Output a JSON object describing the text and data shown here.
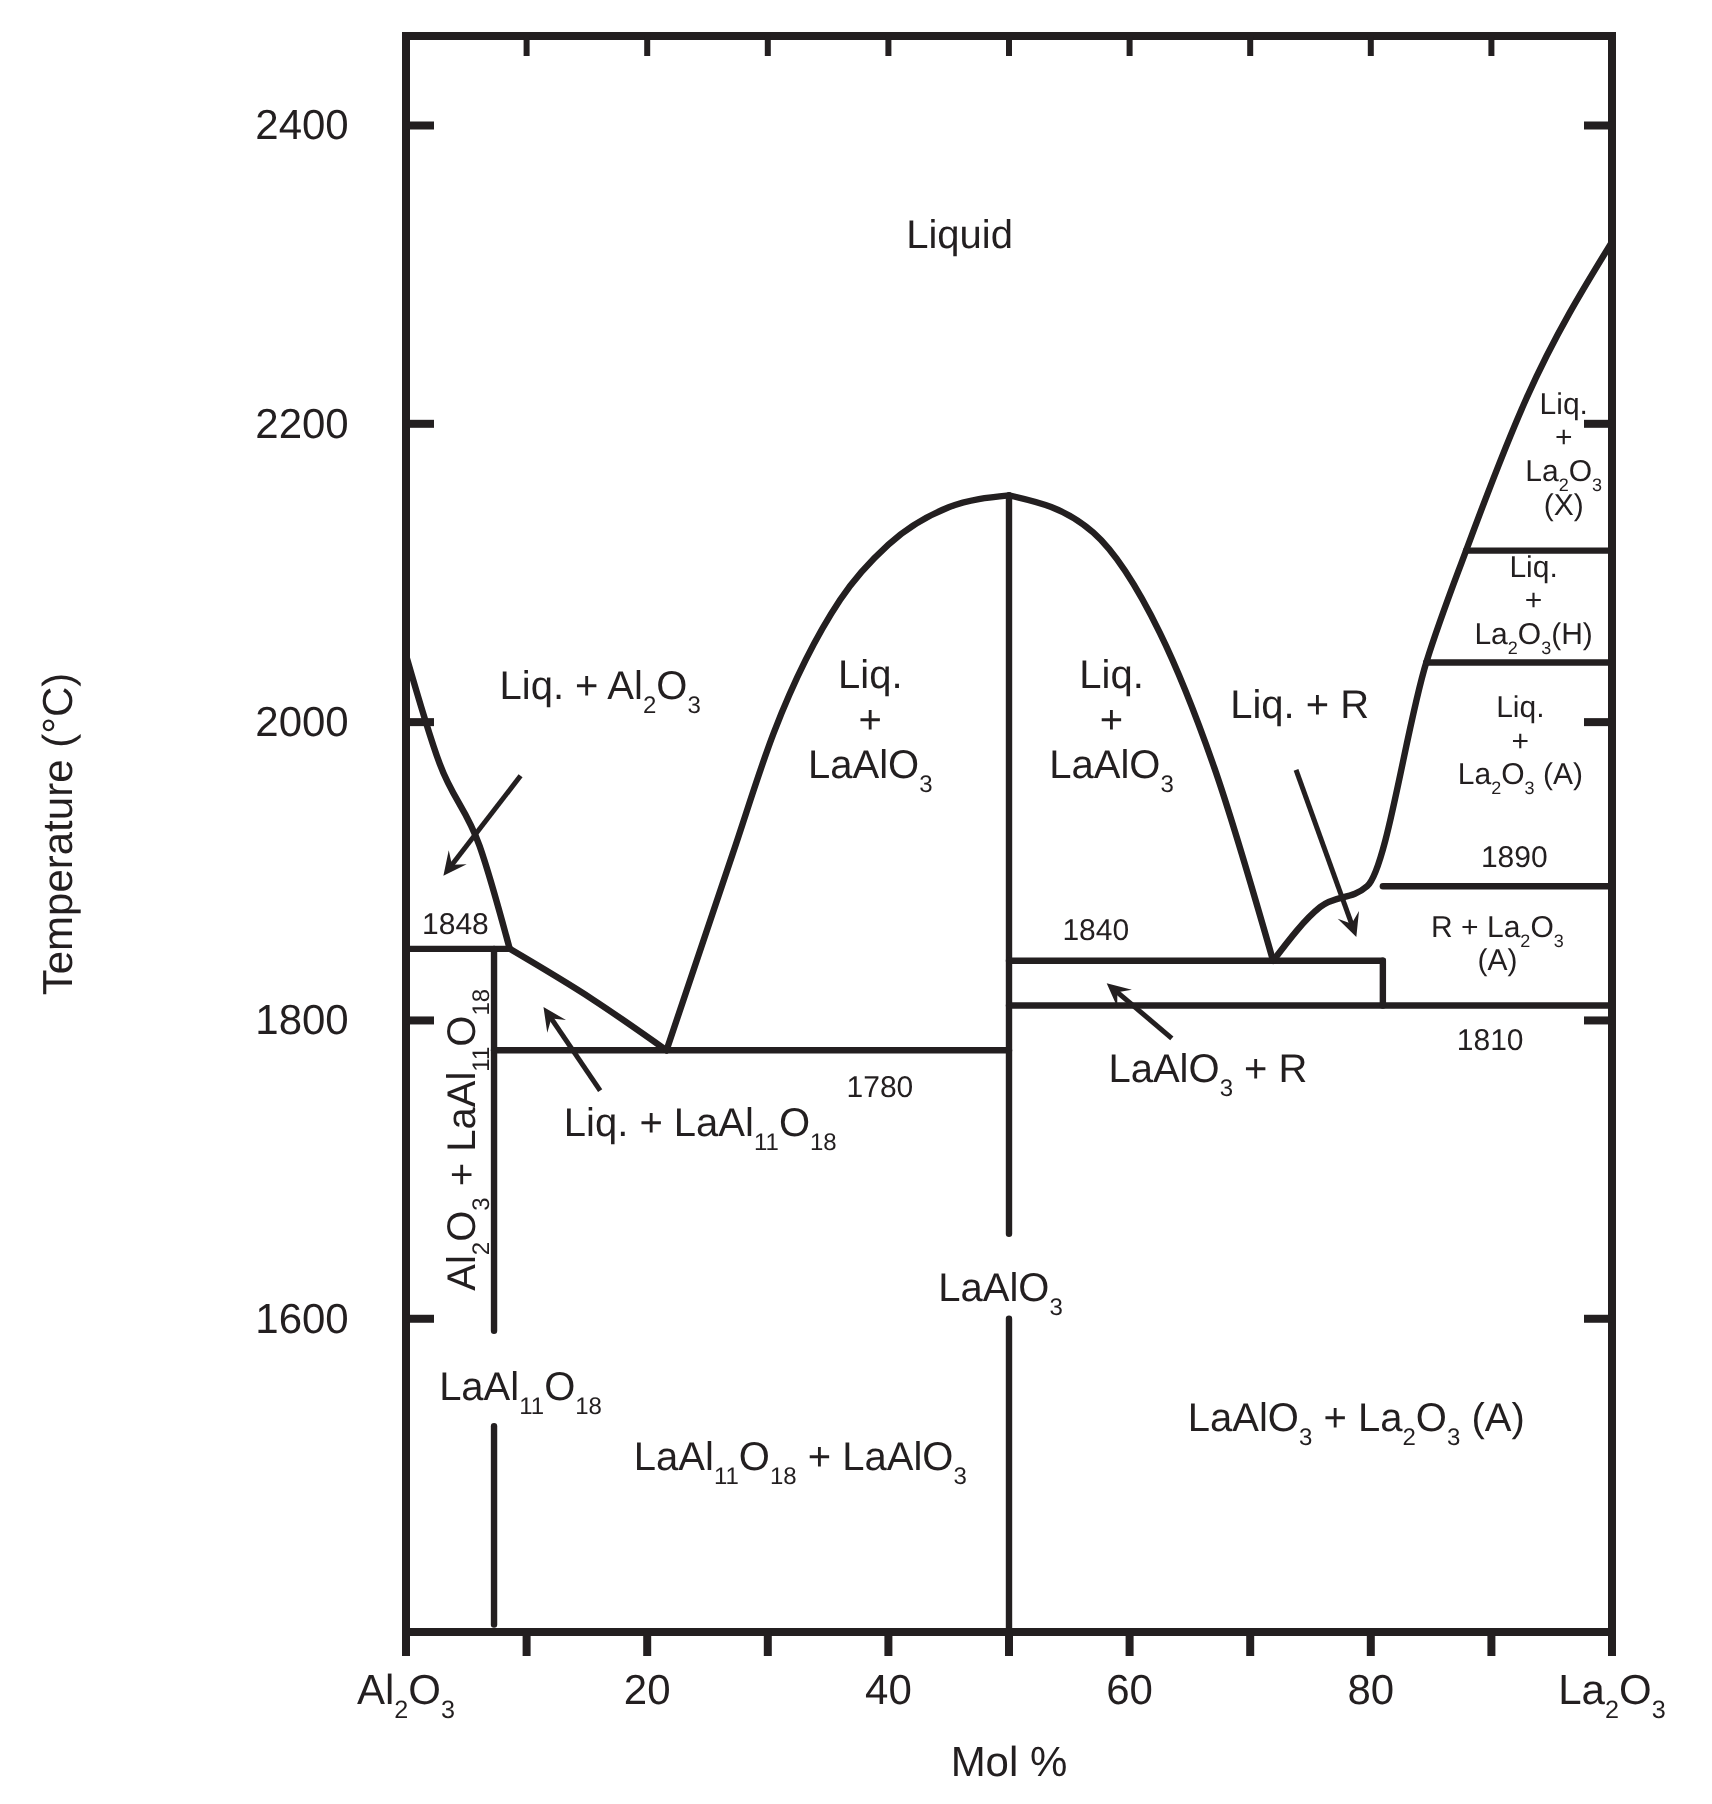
{
  "chart_data": {
    "type": "line",
    "xlabel": "Mol %",
    "ylabel": "Temperature (°C)",
    "xlim": [
      0,
      100
    ],
    "ylim": [
      1390,
      2460
    ],
    "xticks": [
      {
        "value": 0,
        "label": "Al$_{2}$O$_{3}$"
      },
      {
        "value": 10,
        "label": null
      },
      20,
      {
        "value": 30,
        "label": null
      },
      40,
      {
        "value": 50,
        "label": null
      },
      60,
      {
        "value": 70,
        "label": null
      },
      80,
      {
        "value": 90,
        "label": null
      },
      {
        "value": 100,
        "label": "La$_{2}$O$_{3}$"
      }
    ],
    "yticks": [
      1600,
      1800,
      2000,
      2200,
      2400
    ],
    "grid": false,
    "marker": "none",
    "line_style": "solid",
    "series": [
      {
        "color": "#231f20",
        "x": [
          0,
          2.8,
          6.1,
          8.6
        ],
        "values": [
          2045,
          1972,
          1917,
          1848
        ]
      },
      {
        "color": "#231f20",
        "x": [
          0,
          8.6
        ],
        "values": [
          1848,
          1848
        ]
      },
      {
        "color": "#231f20",
        "x": [
          7.3,
          7.3
        ],
        "values": [
          1848,
          1592
        ]
      },
      {
        "color": "#231f20",
        "x": [
          7.3,
          7.3
        ],
        "values": [
          1528,
          1395
        ]
      },
      {
        "color": "#231f20",
        "x": [
          8.6,
          15.5,
          21.6
        ],
        "values": [
          1848,
          1814,
          1780
        ]
      },
      {
        "color": "#231f20",
        "x": [
          7.3,
          50
        ],
        "values": [
          1780,
          1780
        ]
      },
      {
        "color": "#231f20",
        "x": [
          21.6,
          27.1,
          30.5,
          36,
          40,
          45,
          50
        ],
        "values": [
          1780,
          1912,
          1993,
          2082,
          2119,
          2144,
          2152
        ]
      },
      {
        "color": "#231f20",
        "x": [
          50,
          57,
          62.5,
          67,
          71.9
        ],
        "values": [
          2152,
          2127,
          2060,
          1970,
          1840
        ]
      },
      {
        "color": "#231f20",
        "x": [
          50,
          50
        ],
        "values": [
          2152,
          1657
        ]
      },
      {
        "color": "#231f20",
        "x": [
          50,
          50
        ],
        "values": [
          1600,
          1390
        ]
      },
      {
        "color": "#231f20",
        "x": [
          50,
          81
        ],
        "values": [
          1840,
          1840
        ]
      },
      {
        "color": "#231f20",
        "x": [
          50,
          100
        ],
        "values": [
          1810,
          1810
        ]
      },
      {
        "color": "#231f20",
        "x": [
          81,
          81
        ],
        "values": [
          1840,
          1810
        ]
      },
      {
        "color": "#231f20",
        "x": [
          71.9,
          75.8,
          79.7,
          84.6,
          87.9,
          92.9,
          100
        ],
        "values": [
          1840,
          1876,
          1890,
          2040,
          2115,
          2217,
          2322
        ]
      },
      {
        "color": "#231f20",
        "x": [
          81,
          100
        ],
        "values": [
          1890,
          1890
        ]
      },
      {
        "color": "#231f20",
        "x": [
          84.6,
          100
        ],
        "values": [
          2040,
          2040
        ]
      },
      {
        "color": "#231f20",
        "x": [
          87.9,
          100
        ],
        "values": [
          2115,
          2115
        ]
      }
    ],
    "annotations": [
      "Liquid",
      "Liq. + Al$_{2}$O$_{3}$",
      "Liq.\n+\nLaAlO$_{3}$",
      "Liq.\n+\nLaAlO$_{3}$",
      "Liq. + R",
      "Liq.\n+\nLa$_{2}$O$_{3}$\n(X)",
      "Liq.\n+\nLa$_{2}$O$_{3}$(H)",
      "Liq.\n+\nLa$_{2}$O$_{3}$ (A)",
      "1890",
      "R + La$_{2}$O$_{3}$\n(A)",
      "1810",
      "1840",
      "LaAlO$_{3}$ + R",
      "1848",
      "Al$_{2}$O$_{3}$ + LaAl$_{11}$O$_{18}$",
      "Liq. + LaAl$_{11}$O$_{18}$",
      "1780",
      "LaAlO$_{3}$",
      "LaAl$_{11}$O$_{18}$",
      "LaAl$_{11}$O$_{18}$ + LaAlO$_{3}$",
      "LaAlO$_{3}$ + La$_{2}$O$_{3}$ (A)"
    ]
  }
}
